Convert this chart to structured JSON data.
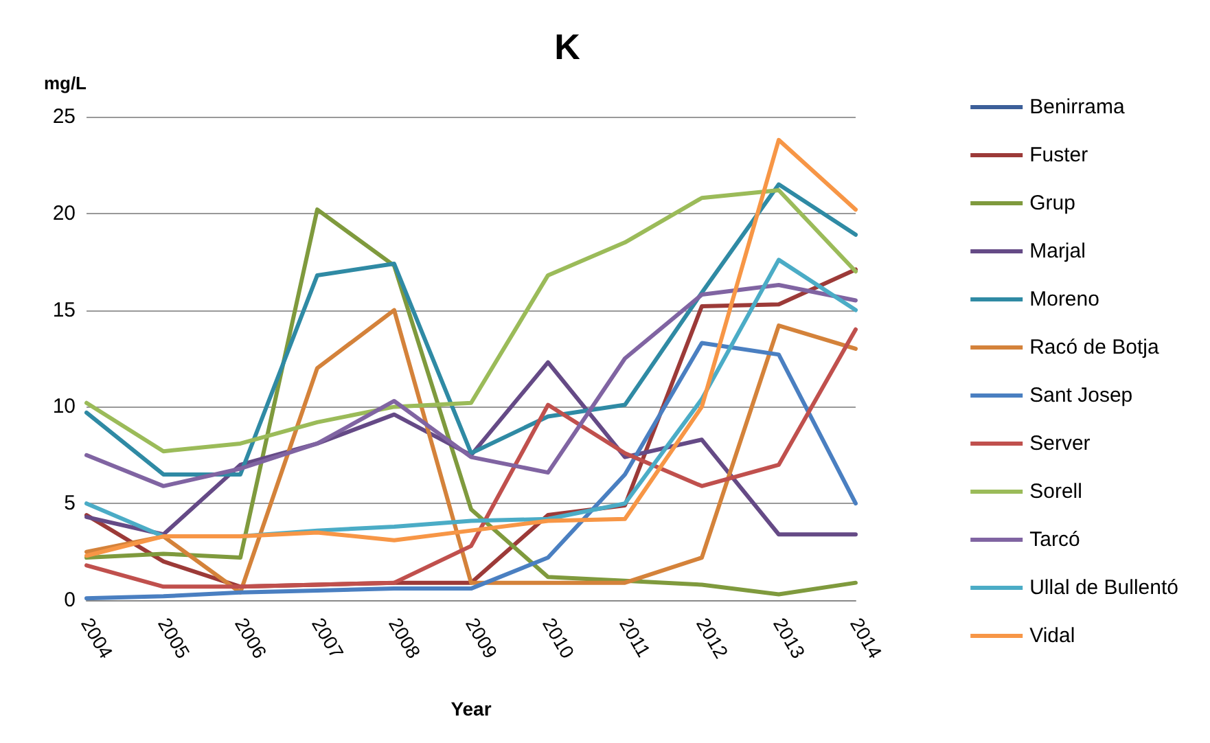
{
  "chart_data": {
    "type": "line",
    "title": "K",
    "ylabel": "mg/L",
    "xlabel": "Year",
    "categories": [
      "2004",
      "2005",
      "2006",
      "2007",
      "2008",
      "2009",
      "2010",
      "2011",
      "2012",
      "2013",
      "2014"
    ],
    "ylim": [
      0,
      25
    ],
    "yticks": [
      0,
      5,
      10,
      15,
      20,
      25
    ],
    "grid": "y",
    "legend": "right",
    "marker": "none",
    "line_style": "solid",
    "series": [
      {
        "name": "Benirrama",
        "color": "#3c5f99",
        "values": [
          null,
          null,
          null,
          null,
          null,
          null,
          null,
          null,
          null,
          null,
          null
        ]
      },
      {
        "name": "Fuster",
        "color": "#9c3a38",
        "values": [
          4.4,
          2.0,
          0.7,
          0.8,
          0.9,
          0.9,
          4.4,
          4.9,
          15.2,
          15.3,
          17.1
        ]
      },
      {
        "name": "Grup",
        "color": "#7f9a3d",
        "values": [
          2.2,
          2.4,
          2.2,
          20.2,
          17.3,
          4.7,
          1.2,
          1.0,
          0.8,
          0.3,
          0.9
        ]
      },
      {
        "name": "Marjal",
        "color": "#654a86",
        "values": [
          4.3,
          3.4,
          7.0,
          8.1,
          9.6,
          7.5,
          12.3,
          7.4,
          8.3,
          3.4,
          3.4
        ]
      },
      {
        "name": "Moreno",
        "color": "#2f8aa4",
        "values": [
          9.7,
          6.5,
          6.5,
          16.8,
          17.4,
          7.6,
          9.5,
          10.1,
          15.9,
          21.5,
          18.9
        ]
      },
      {
        "name": "Racó de Botja",
        "color": "#d4823a",
        "values": [
          2.5,
          3.3,
          0.4,
          12.0,
          15.0,
          0.9,
          0.9,
          0.9,
          2.2,
          14.2,
          13.0
        ]
      },
      {
        "name": "Sant Josep",
        "color": "#4a7fc1",
        "values": [
          0.1,
          0.2,
          0.4,
          0.5,
          0.6,
          0.6,
          2.2,
          6.5,
          13.3,
          12.7,
          5.0
        ]
      },
      {
        "name": "Server",
        "color": "#c0504d",
        "values": [
          1.8,
          0.7,
          0.7,
          0.8,
          0.9,
          2.8,
          10.1,
          7.6,
          5.9,
          7.0,
          14.0
        ]
      },
      {
        "name": "Sorell",
        "color": "#9bbb59",
        "values": [
          10.2,
          7.7,
          8.1,
          9.2,
          10.0,
          10.2,
          16.8,
          18.5,
          20.8,
          21.2,
          17.0
        ]
      },
      {
        "name": "Tarcó",
        "color": "#8064a2",
        "values": [
          7.5,
          5.9,
          6.8,
          8.1,
          10.3,
          7.4,
          6.6,
          12.5,
          15.8,
          16.3,
          15.5
        ]
      },
      {
        "name": "Ullal de Bullentó",
        "color": "#4bacc6",
        "values": [
          5.0,
          3.3,
          3.3,
          3.6,
          3.8,
          4.1,
          4.2,
          5.0,
          10.4,
          17.6,
          15.0
        ]
      },
      {
        "name": "Vidal",
        "color": "#f79646",
        "values": [
          2.3,
          3.3,
          3.3,
          3.5,
          3.1,
          3.6,
          4.1,
          4.2,
          10.0,
          23.8,
          20.2
        ]
      }
    ]
  }
}
